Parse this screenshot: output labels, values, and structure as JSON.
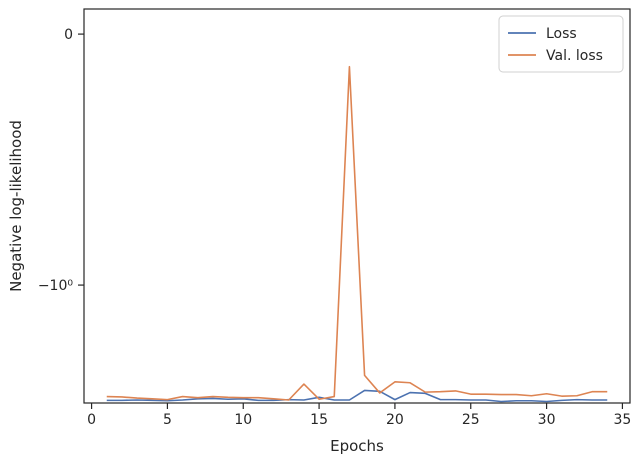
{
  "chart_data": {
    "type": "line",
    "xlabel": "Epochs",
    "ylabel": "Negative log-likelihood",
    "xlim": [
      -0.5,
      35.5
    ],
    "x_ticks": [
      0,
      5,
      10,
      15,
      20,
      25,
      30,
      35
    ],
    "x_tick_labels": [
      "0",
      "5",
      "10",
      "15",
      "20",
      "25",
      "30",
      "35"
    ],
    "y_scale": "symlog",
    "y_ticks": [
      0,
      -1
    ],
    "y_tick_labels": [
      "0",
      "−10⁰"
    ],
    "ylim": [
      -2.95,
      0.1
    ],
    "grid": false,
    "legend_position": "top-right",
    "x": [
      1,
      2,
      3,
      4,
      5,
      6,
      7,
      8,
      9,
      10,
      11,
      12,
      13,
      14,
      15,
      16,
      17,
      18,
      19,
      20,
      21,
      22,
      23,
      24,
      25,
      26,
      27,
      28,
      29,
      30,
      31,
      32,
      33,
      34
    ],
    "series": [
      {
        "name": "Loss",
        "color": "#4c72b0",
        "values": [
          -2.88,
          -2.88,
          -2.87,
          -2.88,
          -2.89,
          -2.87,
          -2.84,
          -2.83,
          -2.85,
          -2.84,
          -2.88,
          -2.88,
          -2.86,
          -2.87,
          -2.8,
          -2.87,
          -2.87,
          -2.63,
          -2.65,
          -2.86,
          -2.68,
          -2.7,
          -2.86,
          -2.86,
          -2.87,
          -2.87,
          -2.91,
          -2.89,
          -2.89,
          -2.91,
          -2.88,
          -2.86,
          -2.87,
          -2.87
        ]
      },
      {
        "name": "Val. loss",
        "color": "#dd8452",
        "values": [
          -2.78,
          -2.79,
          -2.82,
          -2.84,
          -2.86,
          -2.78,
          -2.81,
          -2.78,
          -2.8,
          -2.81,
          -2.81,
          -2.84,
          -2.87,
          -2.48,
          -2.85,
          -2.78,
          -0.13,
          -2.29,
          -2.69,
          -2.43,
          -2.45,
          -2.67,
          -2.66,
          -2.64,
          -2.72,
          -2.72,
          -2.73,
          -2.73,
          -2.76,
          -2.71,
          -2.77,
          -2.76,
          -2.66,
          -2.66
        ]
      }
    ]
  }
}
